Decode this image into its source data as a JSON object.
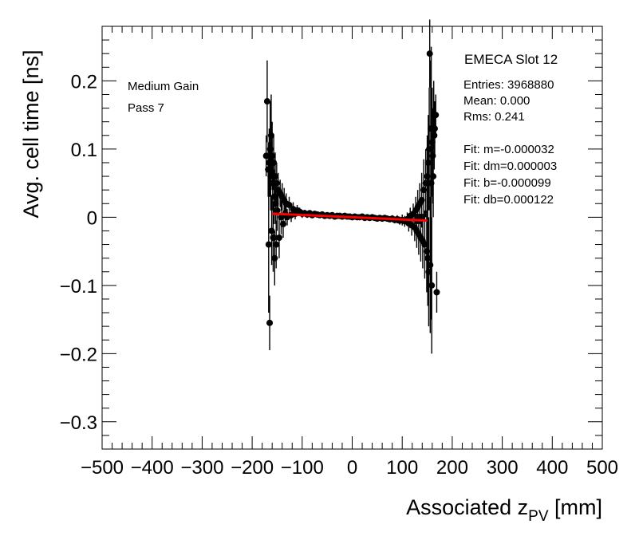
{
  "chart_data": {
    "type": "scatter",
    "xlabel": "Associated z",
    "xlabel_sub": "PV",
    "xlabel_unit": " [mm]",
    "ylabel": "Avg. cell time [ns]",
    "xlim": [
      -500,
      500
    ],
    "ylim": [
      -0.34,
      0.28
    ],
    "x_ticks": [
      -500,
      -400,
      -300,
      -200,
      -100,
      0,
      100,
      200,
      300,
      400,
      500
    ],
    "x_tick_labels": [
      "−500",
      "−400",
      "−300",
      "−200",
      "−100",
      "0",
      "100",
      "200",
      "300",
      "400",
      "500"
    ],
    "y_ticks": [
      -0.3,
      -0.2,
      -0.1,
      0,
      0.1,
      0.2
    ],
    "y_tick_labels": [
      "−0.3",
      "−0.2",
      "−0.1",
      "0",
      "0.1",
      "0.2"
    ],
    "grid": false,
    "annotations": [
      "Medium Gain",
      "Pass 7"
    ],
    "stats_box": {
      "title": "EMECA Slot 12",
      "lines": [
        "Entries: 3968880",
        "Mean: 0.000",
        "Rms: 0.241",
        "",
        "Fit: m=-0.000032",
        "Fit: dm=0.000003",
        "Fit: b=-0.000099",
        "Fit: db=0.000122"
      ]
    },
    "series": [
      {
        "marker_color": "#000000",
        "x": [
          -172,
          -170,
          -168,
          -167,
          -166,
          -165,
          -164,
          -163,
          -162,
          -161,
          -160,
          -159,
          -158,
          -157,
          -156,
          -155,
          -154,
          -153,
          -152,
          -151,
          -150,
          -148,
          -146,
          -144,
          -142,
          -140,
          -138,
          -136,
          -134,
          -132,
          -130,
          -126,
          -122,
          -118,
          -114,
          -110,
          -105,
          -100,
          -95,
          -90,
          -85,
          -80,
          -75,
          -70,
          -65,
          -60,
          -55,
          -50,
          -45,
          -40,
          -35,
          -30,
          -25,
          -20,
          -15,
          -10,
          -5,
          0,
          5,
          10,
          15,
          20,
          25,
          30,
          35,
          40,
          45,
          50,
          55,
          60,
          65,
          70,
          75,
          80,
          85,
          90,
          95,
          100,
          105,
          110,
          113,
          116,
          119,
          122,
          125,
          127,
          129,
          131,
          133,
          135,
          137,
          139,
          141,
          143,
          145,
          147,
          149,
          150,
          151,
          152,
          153,
          154,
          155,
          156,
          157,
          158,
          159,
          160,
          161,
          162,
          163,
          164,
          165,
          167,
          169
        ],
        "y": [
          0.09,
          0.17,
          0.07,
          -0.04,
          0.08,
          -0.155,
          0.1,
          0.06,
          0.12,
          -0.02,
          0.09,
          0.05,
          -0.03,
          0.08,
          0.03,
          -0.06,
          0.06,
          0.02,
          -0.04,
          0.05,
          0.01,
          0.04,
          -0.03,
          0.035,
          0.0,
          0.03,
          -0.01,
          0.025,
          0.005,
          0.02,
          0.0,
          0.018,
          0.003,
          0.012,
          0.005,
          0.01,
          0.008,
          0.005,
          0.006,
          0.004,
          0.006,
          0.003,
          0.005,
          0.004,
          0.003,
          0.004,
          0.002,
          0.003,
          0.002,
          0.003,
          0.001,
          0.002,
          0.002,
          0.001,
          0.002,
          0.001,
          0.001,
          0.0,
          0.001,
          0.0,
          0.0,
          0.001,
          -0.001,
          0.0,
          -0.001,
          0.0,
          -0.001,
          -0.002,
          -0.001,
          -0.002,
          -0.001,
          -0.002,
          -0.003,
          -0.002,
          -0.004,
          -0.003,
          -0.005,
          -0.004,
          -0.006,
          -0.003,
          -0.009,
          0.002,
          -0.012,
          0.005,
          -0.015,
          0.01,
          -0.02,
          0.015,
          -0.025,
          0.02,
          -0.03,
          0.025,
          -0.035,
          0.04,
          -0.04,
          0.05,
          -0.05,
          0.06,
          -0.06,
          0.08,
          -0.08,
          0.1,
          0.24,
          -0.07,
          0.13,
          0.05,
          -0.1,
          0.11,
          0.09,
          0.06,
          0.15,
          0.12,
          0.13,
          0.15,
          -0.11
        ],
        "yerr": [
          0.03,
          0.06,
          0.04,
          0.1,
          0.05,
          0.04,
          0.07,
          0.05,
          0.06,
          0.05,
          0.05,
          0.04,
          0.05,
          0.04,
          0.04,
          0.04,
          0.035,
          0.03,
          0.035,
          0.03,
          0.03,
          0.025,
          0.03,
          0.02,
          0.025,
          0.02,
          0.02,
          0.018,
          0.015,
          0.015,
          0.012,
          0.012,
          0.01,
          0.01,
          0.008,
          0.008,
          0.006,
          0.006,
          0.005,
          0.005,
          0.004,
          0.004,
          0.004,
          0.003,
          0.003,
          0.003,
          0.003,
          0.003,
          0.003,
          0.003,
          0.003,
          0.003,
          0.003,
          0.003,
          0.003,
          0.003,
          0.003,
          0.003,
          0.003,
          0.003,
          0.003,
          0.003,
          0.003,
          0.003,
          0.003,
          0.003,
          0.003,
          0.003,
          0.003,
          0.003,
          0.004,
          0.004,
          0.004,
          0.005,
          0.005,
          0.006,
          0.006,
          0.008,
          0.008,
          0.01,
          0.012,
          0.012,
          0.015,
          0.015,
          0.02,
          0.02,
          0.025,
          0.025,
          0.03,
          0.03,
          0.035,
          0.04,
          0.04,
          0.045,
          0.05,
          0.05,
          0.06,
          0.06,
          0.07,
          0.07,
          0.08,
          0.09,
          0.05,
          0.1,
          0.1,
          0.2,
          0.1,
          0.08,
          0.07,
          0.06,
          0.05,
          0.05,
          0.04,
          0.03,
          0.03
        ]
      },
      {
        "type": "line",
        "color": "#ff0000",
        "x": [
          -160,
          150
        ],
        "y": [
          0.0052,
          -0.0049
        ]
      }
    ]
  }
}
